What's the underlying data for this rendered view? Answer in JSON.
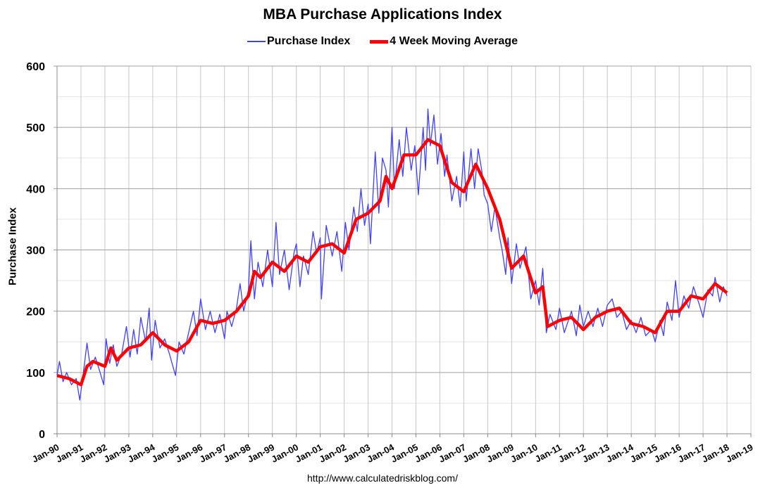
{
  "chart_data": {
    "type": "line",
    "title": "MBA Purchase Applications Index",
    "ylabel": "Purchase Index",
    "xlabel": "",
    "source": "http://www.calculatedriskblog.com/",
    "xlim": [
      1990,
      2019
    ],
    "ylim": [
      0,
      600
    ],
    "yticks": [
      0,
      100,
      200,
      300,
      400,
      500,
      600
    ],
    "xtick_labels": [
      "Jan-90",
      "Jan-91",
      "Jan-92",
      "Jan-93",
      "Jan-94",
      "Jan-95",
      "Jan-96",
      "Jan-97",
      "Jan-98",
      "Jan-99",
      "Jan-00",
      "Jan-01",
      "Jan-02",
      "Jan-03",
      "Jan-04",
      "Jan-05",
      "Jan-06",
      "Jan-07",
      "Jan-08",
      "Jan-09",
      "Jan-10",
      "Jan-11",
      "Jan-12",
      "Jan-13",
      "Jan-14",
      "Jan-15",
      "Jan-16",
      "Jan-17",
      "Jan-18",
      "Jan-19"
    ],
    "grid": true,
    "legend": "top-center",
    "series": [
      {
        "name": "Purchase Index",
        "color": "#4040ff",
        "points": [
          [
            1990.0,
            95
          ],
          [
            1990.1,
            118
          ],
          [
            1990.25,
            85
          ],
          [
            1990.4,
            100
          ],
          [
            1990.6,
            80
          ],
          [
            1990.8,
            90
          ],
          [
            1990.95,
            55
          ],
          [
            1991.1,
            100
          ],
          [
            1991.25,
            148
          ],
          [
            1991.4,
            105
          ],
          [
            1991.6,
            125
          ],
          [
            1991.8,
            100
          ],
          [
            1991.95,
            80
          ],
          [
            1992.05,
            155
          ],
          [
            1992.2,
            115
          ],
          [
            1992.35,
            145
          ],
          [
            1992.5,
            110
          ],
          [
            1992.7,
            130
          ],
          [
            1992.9,
            175
          ],
          [
            1993.05,
            125
          ],
          [
            1993.2,
            170
          ],
          [
            1993.35,
            130
          ],
          [
            1993.5,
            190
          ],
          [
            1993.7,
            150
          ],
          [
            1993.85,
            205
          ],
          [
            1993.95,
            120
          ],
          [
            1994.1,
            185
          ],
          [
            1994.3,
            140
          ],
          [
            1994.5,
            155
          ],
          [
            1994.7,
            130
          ],
          [
            1994.95,
            95
          ],
          [
            1995.1,
            150
          ],
          [
            1995.3,
            130
          ],
          [
            1995.5,
            165
          ],
          [
            1995.7,
            200
          ],
          [
            1995.85,
            160
          ],
          [
            1996.0,
            220
          ],
          [
            1996.2,
            170
          ],
          [
            1996.4,
            200
          ],
          [
            1996.6,
            165
          ],
          [
            1996.8,
            195
          ],
          [
            1997.0,
            155
          ],
          [
            1997.1,
            200
          ],
          [
            1997.3,
            175
          ],
          [
            1997.5,
            205
          ],
          [
            1997.65,
            245
          ],
          [
            1997.8,
            200
          ],
          [
            1998.0,
            235
          ],
          [
            1998.1,
            315
          ],
          [
            1998.25,
            220
          ],
          [
            1998.4,
            280
          ],
          [
            1998.6,
            240
          ],
          [
            1998.8,
            300
          ],
          [
            1999.0,
            240
          ],
          [
            1999.15,
            345
          ],
          [
            1999.3,
            260
          ],
          [
            1999.5,
            300
          ],
          [
            1999.7,
            235
          ],
          [
            1999.9,
            295
          ],
          [
            2000.0,
            310
          ],
          [
            2000.15,
            240
          ],
          [
            2000.3,
            290
          ],
          [
            2000.5,
            260
          ],
          [
            2000.7,
            330
          ],
          [
            2000.85,
            295
          ],
          [
            2001.0,
            320
          ],
          [
            2001.05,
            220
          ],
          [
            2001.25,
            340
          ],
          [
            2001.5,
            290
          ],
          [
            2001.7,
            330
          ],
          [
            2001.9,
            265
          ],
          [
            2002.05,
            345
          ],
          [
            2002.2,
            300
          ],
          [
            2002.4,
            370
          ],
          [
            2002.55,
            330
          ],
          [
            2002.7,
            400
          ],
          [
            2002.85,
            340
          ],
          [
            2003.0,
            375
          ],
          [
            2003.1,
            310
          ],
          [
            2003.3,
            460
          ],
          [
            2003.45,
            360
          ],
          [
            2003.6,
            450
          ],
          [
            2003.75,
            430
          ],
          [
            2003.85,
            370
          ],
          [
            2004.0,
            500
          ],
          [
            2004.1,
            400
          ],
          [
            2004.3,
            480
          ],
          [
            2004.45,
            420
          ],
          [
            2004.6,
            500
          ],
          [
            2004.8,
            430
          ],
          [
            2004.95,
            470
          ],
          [
            2005.1,
            390
          ],
          [
            2005.3,
            500
          ],
          [
            2005.4,
            430
          ],
          [
            2005.5,
            530
          ],
          [
            2005.6,
            470
          ],
          [
            2005.75,
            520
          ],
          [
            2005.9,
            440
          ],
          [
            2006.05,
            490
          ],
          [
            2006.2,
            420
          ],
          [
            2006.3,
            455
          ],
          [
            2006.5,
            380
          ],
          [
            2006.7,
            420
          ],
          [
            2006.85,
            370
          ],
          [
            2007.0,
            460
          ],
          [
            2007.1,
            380
          ],
          [
            2007.3,
            465
          ],
          [
            2007.45,
            400
          ],
          [
            2007.6,
            465
          ],
          [
            2007.75,
            430
          ],
          [
            2007.85,
            390
          ],
          [
            2008.0,
            375
          ],
          [
            2008.15,
            330
          ],
          [
            2008.3,
            370
          ],
          [
            2008.5,
            320
          ],
          [
            2008.6,
            300
          ],
          [
            2008.75,
            260
          ],
          [
            2008.85,
            320
          ],
          [
            2009.0,
            245
          ],
          [
            2009.2,
            310
          ],
          [
            2009.35,
            270
          ],
          [
            2009.6,
            305
          ],
          [
            2009.8,
            220
          ],
          [
            2010.0,
            250
          ],
          [
            2010.15,
            210
          ],
          [
            2010.3,
            270
          ],
          [
            2010.45,
            165
          ],
          [
            2010.6,
            195
          ],
          [
            2010.85,
            170
          ],
          [
            2011.0,
            205
          ],
          [
            2011.2,
            165
          ],
          [
            2011.5,
            200
          ],
          [
            2011.7,
            160
          ],
          [
            2011.85,
            210
          ],
          [
            2012.0,
            175
          ],
          [
            2012.2,
            200
          ],
          [
            2012.4,
            175
          ],
          [
            2012.6,
            205
          ],
          [
            2012.8,
            175
          ],
          [
            2013.0,
            210
          ],
          [
            2013.2,
            220
          ],
          [
            2013.4,
            190
          ],
          [
            2013.6,
            200
          ],
          [
            2013.8,
            170
          ],
          [
            2014.0,
            185
          ],
          [
            2014.2,
            165
          ],
          [
            2014.4,
            190
          ],
          [
            2014.6,
            160
          ],
          [
            2014.85,
            170
          ],
          [
            2015.0,
            150
          ],
          [
            2015.2,
            185
          ],
          [
            2015.35,
            160
          ],
          [
            2015.5,
            215
          ],
          [
            2015.7,
            185
          ],
          [
            2015.85,
            250
          ],
          [
            2016.0,
            190
          ],
          [
            2016.2,
            225
          ],
          [
            2016.4,
            205
          ],
          [
            2016.6,
            240
          ],
          [
            2016.85,
            210
          ],
          [
            2017.0,
            190
          ],
          [
            2017.2,
            235
          ],
          [
            2017.4,
            225
          ],
          [
            2017.5,
            255
          ],
          [
            2017.7,
            215
          ],
          [
            2017.85,
            240
          ],
          [
            2018.0,
            225
          ]
        ]
      },
      {
        "name": "4 Week Moving Average",
        "color": "#ff0000",
        "points": [
          [
            1990.0,
            95
          ],
          [
            1990.5,
            90
          ],
          [
            1991.0,
            80
          ],
          [
            1991.25,
            110
          ],
          [
            1991.5,
            118
          ],
          [
            1992.0,
            110
          ],
          [
            1992.25,
            140
          ],
          [
            1992.5,
            120
          ],
          [
            1993.0,
            140
          ],
          [
            1993.5,
            145
          ],
          [
            1994.0,
            165
          ],
          [
            1994.5,
            145
          ],
          [
            1995.0,
            135
          ],
          [
            1995.5,
            150
          ],
          [
            1996.0,
            185
          ],
          [
            1996.5,
            180
          ],
          [
            1997.0,
            185
          ],
          [
            1997.5,
            200
          ],
          [
            1998.0,
            225
          ],
          [
            1998.25,
            265
          ],
          [
            1998.5,
            255
          ],
          [
            1999.0,
            280
          ],
          [
            1999.5,
            265
          ],
          [
            2000.0,
            290
          ],
          [
            2000.5,
            280
          ],
          [
            2001.0,
            305
          ],
          [
            2001.5,
            310
          ],
          [
            2002.0,
            295
          ],
          [
            2002.5,
            350
          ],
          [
            2003.0,
            360
          ],
          [
            2003.5,
            380
          ],
          [
            2003.75,
            420
          ],
          [
            2004.0,
            400
          ],
          [
            2004.5,
            455
          ],
          [
            2005.0,
            455
          ],
          [
            2005.5,
            480
          ],
          [
            2006.0,
            470
          ],
          [
            2006.5,
            410
          ],
          [
            2007.0,
            395
          ],
          [
            2007.5,
            440
          ],
          [
            2008.0,
            400
          ],
          [
            2008.5,
            350
          ],
          [
            2009.0,
            270
          ],
          [
            2009.5,
            290
          ],
          [
            2010.0,
            230
          ],
          [
            2010.3,
            240
          ],
          [
            2010.5,
            175
          ],
          [
            2011.0,
            185
          ],
          [
            2011.5,
            190
          ],
          [
            2012.0,
            170
          ],
          [
            2012.5,
            190
          ],
          [
            2013.0,
            200
          ],
          [
            2013.5,
            205
          ],
          [
            2014.0,
            180
          ],
          [
            2014.5,
            175
          ],
          [
            2015.0,
            165
          ],
          [
            2015.5,
            200
          ],
          [
            2016.0,
            200
          ],
          [
            2016.5,
            225
          ],
          [
            2017.0,
            220
          ],
          [
            2017.5,
            245
          ],
          [
            2018.0,
            230
          ]
        ]
      }
    ]
  }
}
